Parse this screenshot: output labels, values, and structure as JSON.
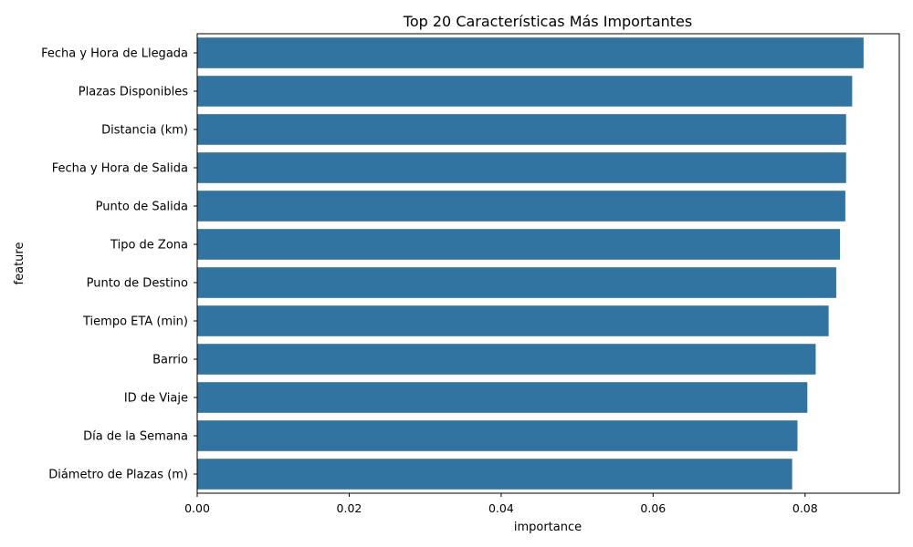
{
  "chart_data": {
    "type": "bar",
    "orientation": "horizontal",
    "title": "Top 20 Características Más Importantes",
    "xlabel": "importance",
    "ylabel": "feature",
    "categories": [
      "Fecha y Hora de Llegada",
      "Plazas Disponibles",
      "Distancia (km)",
      "Fecha y Hora de Salida",
      "Punto de Salida",
      "Tipo de Zona",
      "Punto de Destino",
      "Tiempo ETA (min)",
      "Barrio",
      "ID de Viaje",
      "Día de la Semana",
      "Diámetro de Plazas (m)"
    ],
    "values": [
      0.0877,
      0.0862,
      0.0854,
      0.0854,
      0.0853,
      0.0846,
      0.0841,
      0.0831,
      0.0814,
      0.0803,
      0.079,
      0.0783
    ],
    "xlim": [
      0,
      0.0924
    ],
    "xticks": [
      0.0,
      0.02,
      0.04,
      0.06,
      0.08
    ],
    "xtick_labels": [
      "0.00",
      "0.02",
      "0.04",
      "0.06",
      "0.08"
    ],
    "grid": false,
    "bar_color": "#3274a1"
  }
}
